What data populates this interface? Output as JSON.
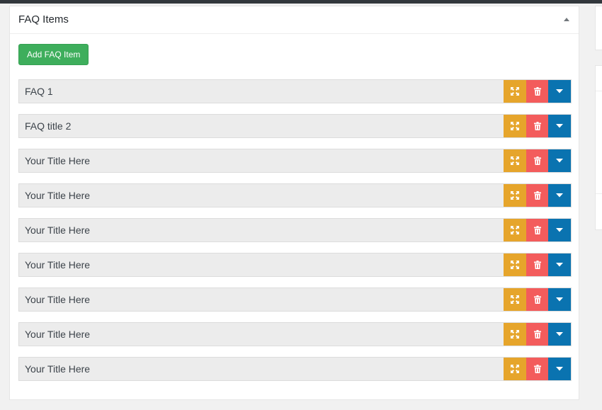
{
  "panel": {
    "title": "FAQ Items",
    "add_button_label": "Add FAQ Item"
  },
  "faq_items": [
    {
      "title": "FAQ 1"
    },
    {
      "title": "FAQ title 2"
    },
    {
      "title": "Your Title Here"
    },
    {
      "title": "Your Title Here"
    },
    {
      "title": "Your Title Here"
    },
    {
      "title": "Your Title Here"
    },
    {
      "title": "Your Title Here"
    },
    {
      "title": "Your Title Here"
    },
    {
      "title": "Your Title Here"
    }
  ],
  "icons": {
    "move": "arrows-expand-icon",
    "delete": "trash-icon",
    "toggle": "caret-down-icon",
    "collapse": "caret-up-icon"
  },
  "colors": {
    "add_button": "#3eae5c",
    "move_button": "#e6a52b",
    "delete_button": "#f35c5c",
    "toggle_button": "#0a73b0"
  }
}
